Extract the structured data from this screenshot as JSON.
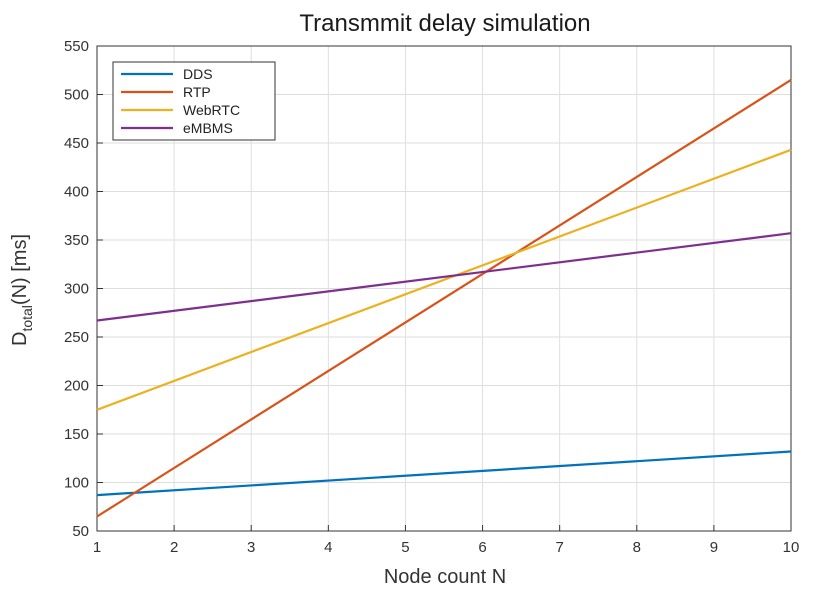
{
  "chart_data": {
    "type": "line",
    "title": "Transmmit delay simulation",
    "xlabel": "Node count N",
    "ylabel": {
      "base": "D",
      "subscript": "total",
      "suffix": "(N) [ms]"
    },
    "xlim": [
      1,
      10
    ],
    "ylim": [
      50,
      550
    ],
    "xticks": [
      1,
      2,
      3,
      4,
      5,
      6,
      7,
      8,
      9,
      10
    ],
    "yticks": [
      50,
      100,
      150,
      200,
      250,
      300,
      350,
      400,
      450,
      500,
      550
    ],
    "grid": true,
    "legend_position": "top-left",
    "series": [
      {
        "name": "DDS",
        "color": "#0072BD",
        "x": [
          1,
          10
        ],
        "y": [
          87,
          132
        ]
      },
      {
        "name": "RTP",
        "color": "#D95319",
        "x": [
          1,
          10
        ],
        "y": [
          65,
          515
        ]
      },
      {
        "name": "WebRTC",
        "color": "#EDB120",
        "x": [
          1,
          10
        ],
        "y": [
          175,
          443
        ]
      },
      {
        "name": "eMBMS",
        "color": "#7E2F8E",
        "x": [
          1,
          10
        ],
        "y": [
          267,
          357
        ]
      }
    ]
  }
}
